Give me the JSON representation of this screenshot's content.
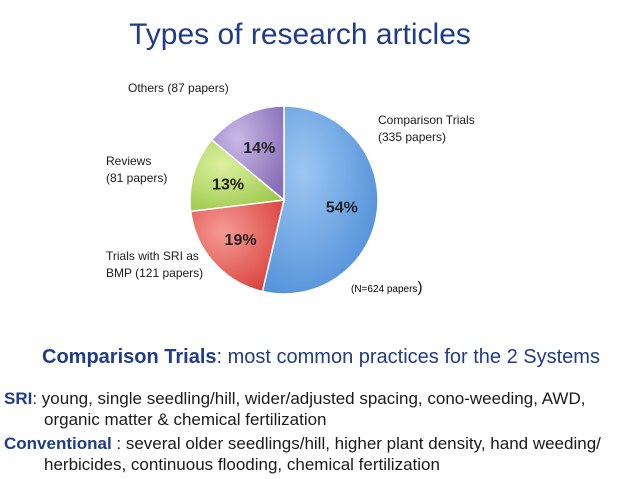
{
  "slide": {
    "title": "Types of research articles",
    "subheading": {
      "term": "Comparison Trials",
      "text": ": most common practices for the 2 Systems"
    },
    "systems": [
      {
        "term": "SRI",
        "line1": ": young, single seedling/hill, wider/adjusted spacing, cono-weeding, AWD,",
        "line2": "organic matter & chemical fertilization"
      },
      {
        "term": "Conventional",
        "line1": " : several older seedlings/hill, higher plant density, hand weeding/",
        "line2": "herbicides, continuous flooding, chemical fertilization"
      }
    ]
  },
  "chart_data": {
    "type": "pie",
    "note": "(N=624 papers",
    "note_close": ")",
    "slices": [
      {
        "label_line1": "Comparison Trials",
        "label_line2": "(335 papers)",
        "papers": 335,
        "percent_label": "54%",
        "percent": 54,
        "color": "#6FA8E8"
      },
      {
        "label_line1": "Trials with SRI as",
        "label_line2": "BMP (121 papers)",
        "papers": 121,
        "percent_label": "19%",
        "percent": 19,
        "color": "#E8645F"
      },
      {
        "label_line1": "Reviews",
        "label_line2": "(81 papers)",
        "papers": 81,
        "percent_label": "13%",
        "percent": 13,
        "color": "#B8DB6A"
      },
      {
        "label_line1": "Others (87 papers)",
        "label_line2": "",
        "papers": 87,
        "percent_label": "14%",
        "percent": 14,
        "color": "#A78FCC"
      }
    ]
  }
}
